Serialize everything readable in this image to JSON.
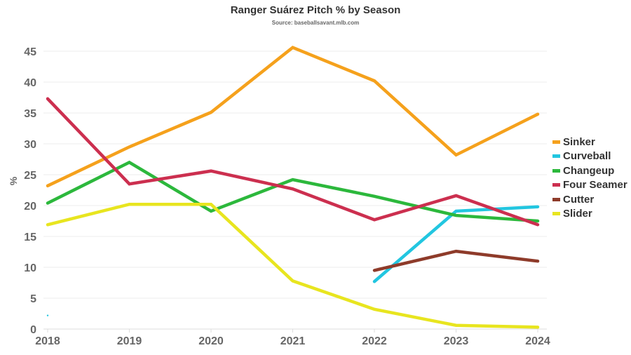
{
  "chart_data": {
    "type": "line",
    "title": "Ranger Suárez Pitch % by Season",
    "subtitle": "Source: baseballsavant.mlb.com",
    "xlabel": "",
    "ylabel": "%",
    "x": [
      "2018",
      "2019",
      "2020",
      "2021",
      "2022",
      "2023",
      "2024"
    ],
    "yticks": [
      "0",
      "5",
      "10",
      "15",
      "20",
      "25",
      "30",
      "35",
      "40",
      "45"
    ],
    "ylim": [
      0,
      47
    ],
    "grid": true,
    "legend_position": "right",
    "series": [
      {
        "name": "Sinker",
        "color": "#f5a11c",
        "values": [
          23.2,
          29.5,
          35.1,
          45.6,
          40.2,
          28.2,
          34.8
        ]
      },
      {
        "name": "Curveball",
        "color": "#22c6e0",
        "values": [
          2.2,
          null,
          null,
          null,
          7.7,
          19.1,
          19.8
        ]
      },
      {
        "name": "Changeup",
        "color": "#2cb83c",
        "values": [
          20.4,
          27.0,
          19.1,
          24.2,
          21.5,
          18.4,
          17.5
        ]
      },
      {
        "name": "Four Seamer",
        "color": "#cc2f4f",
        "values": [
          37.3,
          23.5,
          25.6,
          22.7,
          17.7,
          21.6,
          16.9
        ]
      },
      {
        "name": "Cutter",
        "color": "#8e3b2a",
        "values": [
          null,
          null,
          null,
          null,
          9.5,
          12.6,
          11.0
        ]
      },
      {
        "name": "Slider",
        "color": "#e8e51f",
        "values": [
          16.9,
          20.2,
          20.2,
          7.8,
          3.2,
          0.6,
          0.3
        ]
      }
    ]
  }
}
